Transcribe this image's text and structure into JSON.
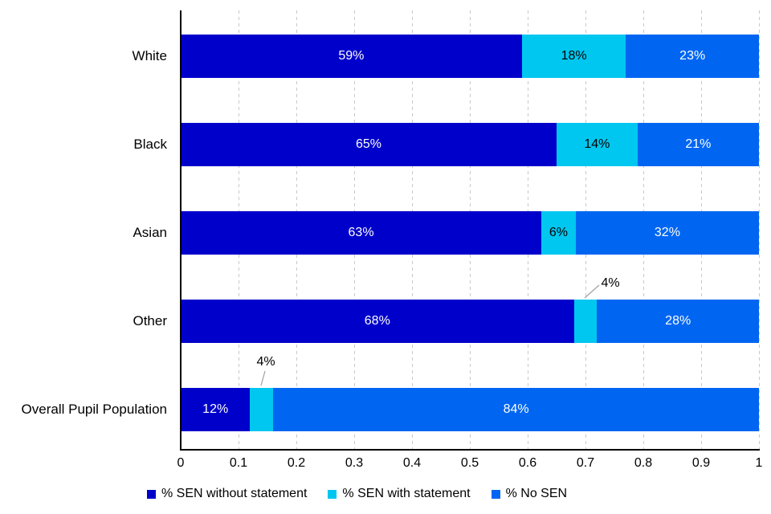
{
  "chart_data": {
    "type": "bar",
    "orientation": "horizontal",
    "stacked": true,
    "title": "",
    "categories": [
      "White",
      "Black",
      "Asian",
      "Other",
      "Overall Pupil Population"
    ],
    "series": [
      {
        "name": "% SEN without statement",
        "color": "#0000CB",
        "label_color": "#FFFFFF",
        "values": [
          59,
          65,
          63,
          68,
          12
        ],
        "labels": [
          "59%",
          "65%",
          "63%",
          "68%",
          "12%"
        ]
      },
      {
        "name": "% SEN with statement",
        "color": "#00C7F0",
        "label_color": "#000000",
        "values": [
          18,
          14,
          6,
          4,
          4
        ],
        "labels": [
          "18%",
          "14%",
          "6%",
          "4%",
          "4%"
        ]
      },
      {
        "name": "% No SEN",
        "color": "#0066F2",
        "label_color": "#FFFFFF",
        "values": [
          23,
          21,
          32,
          28,
          84
        ],
        "labels": [
          "23%",
          "21%",
          "32%",
          "28%",
          "84%"
        ]
      }
    ],
    "x_axis": {
      "min": 0,
      "max": 1,
      "tick_interval": 0.1,
      "tick_labels": [
        "0",
        "0.1",
        "0.2",
        "0.3",
        "0.4",
        "0.5",
        "0.6",
        "0.7",
        "0.8",
        "0.9",
        "1"
      ]
    },
    "gridlines": {
      "visible": true,
      "style": "dashed",
      "color": "#C9C9C9"
    },
    "legend": {
      "position": "bottom"
    },
    "callouts": [
      {
        "series_index": 1,
        "category_index": 3,
        "label": "4%",
        "label_cx": 760,
        "label_top": 344,
        "line": [
          [
            746,
            355
          ],
          [
            728,
            371
          ]
        ]
      },
      {
        "series_index": 1,
        "category_index": 4,
        "label": "4%",
        "label_cx": 331,
        "label_top": 442,
        "line": [
          [
            330,
            462
          ],
          [
            325,
            480
          ]
        ]
      }
    ],
    "annotation_line_color": "#A6A6A6",
    "axis_color": "#000000"
  }
}
